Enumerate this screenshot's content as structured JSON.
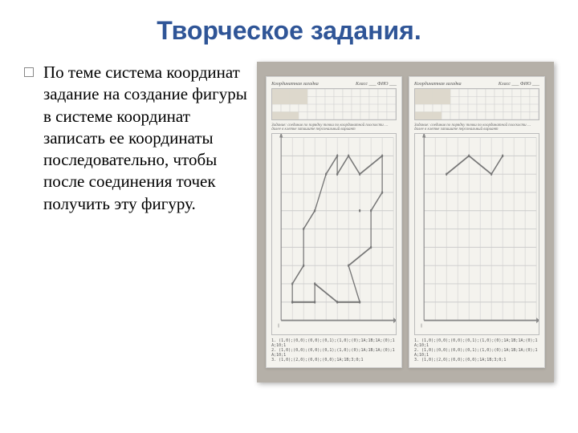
{
  "title": "Творческое задания.",
  "body_text": "По теме система координат задание на создание фигуры в системе координат записать ее координаты последовательно, чтобы после соединения точек получить эту фигуру.",
  "colors": {
    "title_color": "#2f5597",
    "body_text_color": "#000000",
    "slide_bg": "#ffffff",
    "photo_bg": "#b5b0a8",
    "paper_bg": "#f4f3ee",
    "grid_line": "#cccccc",
    "axis_line": "#888888",
    "figure_line": "#777777"
  },
  "worksheet_left": {
    "header": "Координатная  загадка",
    "header_right": "Класс ___  ФИО ___",
    "topgrid": {
      "cols": 14,
      "rows": 4,
      "shaded_cells": [
        [
          0,
          0
        ],
        [
          0,
          1
        ],
        [
          1,
          0
        ],
        [
          1,
          1
        ],
        [
          2,
          0
        ],
        [
          2,
          1
        ],
        [
          3,
          0
        ],
        [
          3,
          1
        ],
        [
          0,
          3
        ],
        [
          1,
          3
        ],
        [
          2,
          3
        ]
      ]
    },
    "subtitle": "Задание: соединив по порядку точки по координатной плоскости … далее в клетке запишите персональный вариант",
    "maingrid": {
      "cols": 10,
      "rows": 10,
      "axis_x_label": "X",
      "axis_y_label": "Y",
      "tick_labels_x": [
        "0",
        "1",
        "2",
        "3",
        "4",
        "5",
        "6",
        "7",
        "8",
        "9",
        "10"
      ],
      "tick_labels_y": [
        "1",
        "2",
        "3",
        "4",
        "5",
        "6",
        "7",
        "8",
        "9",
        "10"
      ],
      "figure_points": [
        [
          1,
          1
        ],
        [
          3,
          1
        ],
        [
          3,
          2
        ],
        [
          5,
          1
        ],
        [
          7,
          1
        ],
        [
          6,
          3
        ],
        [
          8,
          4
        ],
        [
          8,
          6
        ],
        [
          9,
          7
        ],
        [
          9,
          9
        ],
        [
          7,
          8
        ],
        [
          6,
          9
        ],
        [
          5,
          8
        ],
        [
          5,
          9
        ],
        [
          4,
          8
        ],
        [
          3,
          6
        ],
        [
          2,
          5
        ],
        [
          2,
          3
        ],
        [
          1,
          2
        ],
        [
          1,
          1
        ]
      ],
      "eye_point": [
        7,
        6
      ]
    },
    "coords_line1": "1. (1,0);(0,0);(0,0);(0,1);(1,0);(0);1A;1B;1A;(0);1A;10;1",
    "coords_line2": "2. (1,0);(0,0);(0,0);(0,1);(1,0);(0);1A;1B;1A;(0);1A;10;1",
    "coords_line3": "3. (1,0);(2,0);(0,0);(0,0);1A;1B;3;0;1"
  },
  "worksheet_right": {
    "header": "Координатная  загадка",
    "header_right": "Класс ___  ФИО ___",
    "topgrid": {
      "cols": 14,
      "rows": 4,
      "shaded_cells": [
        [
          0,
          0
        ],
        [
          0,
          1
        ],
        [
          1,
          0
        ],
        [
          1,
          1
        ],
        [
          2,
          0
        ],
        [
          2,
          1
        ],
        [
          3,
          0
        ],
        [
          3,
          1
        ],
        [
          0,
          3
        ],
        [
          1,
          3
        ],
        [
          2,
          3
        ]
      ]
    },
    "subtitle": "Задание: соединив по порядку точки по координатной плоскости … далее в клетке запишите персональный вариант",
    "maingrid": {
      "cols": 10,
      "rows": 10,
      "axis_x_label": "X",
      "axis_y_label": "Y",
      "tick_labels_x": [
        "0",
        "1",
        "2",
        "3",
        "4",
        "5",
        "6",
        "7",
        "8",
        "9",
        "10"
      ],
      "tick_labels_y": [
        "1",
        "2",
        "3",
        "4",
        "5",
        "6",
        "7",
        "8",
        "9",
        "10"
      ],
      "partial_points": [
        [
          2,
          8
        ],
        [
          4,
          9
        ],
        [
          6,
          8
        ],
        [
          7,
          9
        ]
      ]
    },
    "coords_line1": "1. (1,0);(0,0);(0,0);(0,1);(1,0);(0);1A;1B;1A;(0);1A;10;1",
    "coords_line2": "2. (1,0);(0,0);(0,0);(0,1);(1,0);(0);1A;1B;1A;(0);1A;10;1",
    "coords_line3": "3. (1,0);(2,0);(0,0);(0,0);1A;1B;3;0;1"
  }
}
